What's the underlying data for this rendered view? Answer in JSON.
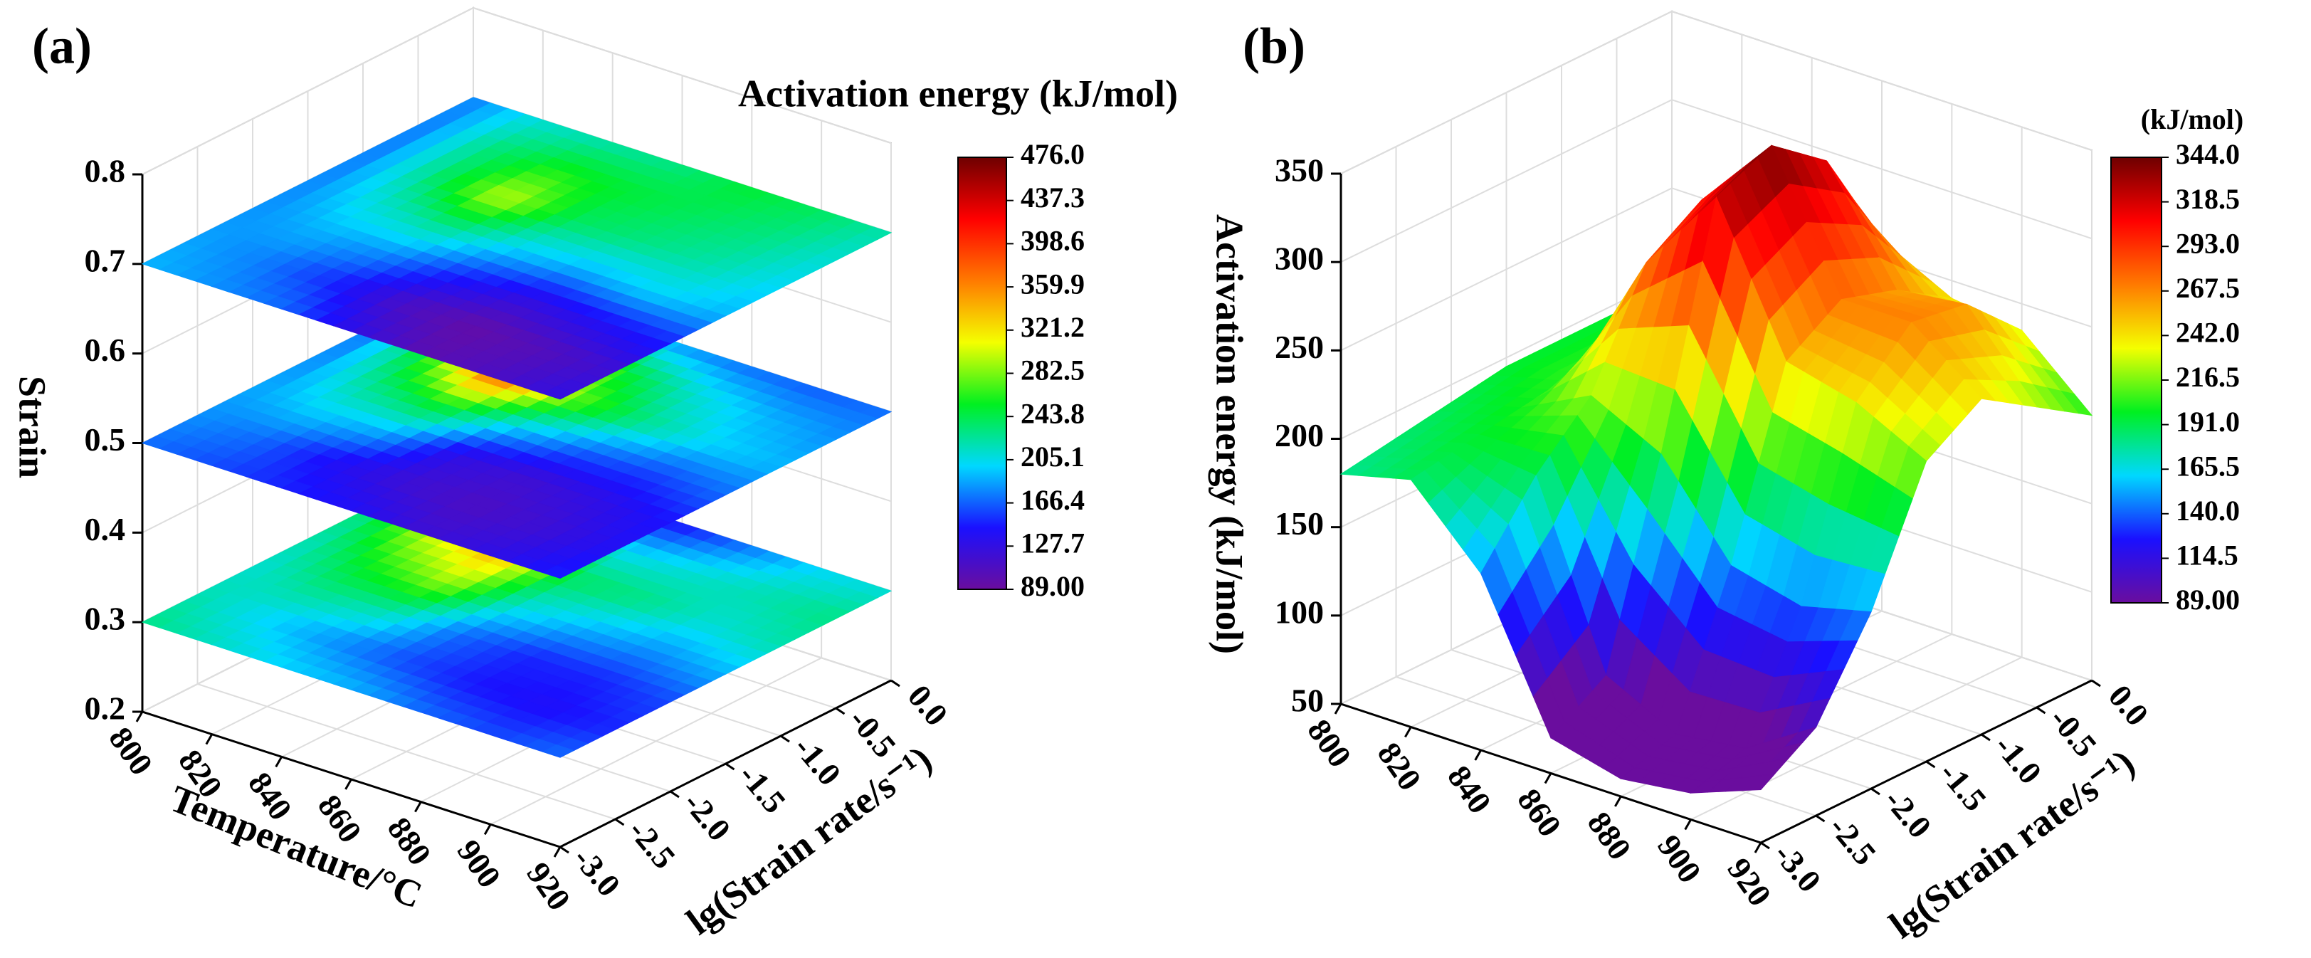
{
  "chart_data": [
    {
      "type": "slices3d",
      "panel_label": "(a)",
      "xlabel": "Temperature/°C",
      "ylabel": "lg(Strain rate/s⁻¹)",
      "zlabel": "Strain",
      "colorbar_title": "Activation energy (kJ/mol)",
      "xlim": [
        800,
        920
      ],
      "ylim": [
        -3,
        0
      ],
      "zlim": [
        0.2,
        0.8
      ],
      "xticks": [
        800,
        820,
        840,
        860,
        880,
        900,
        920
      ],
      "yticks": [
        {
          "value": -3,
          "label": "-3.0"
        },
        -2.5,
        {
          "value": -2,
          "label": "-2.0"
        },
        -1.5,
        {
          "value": -1,
          "label": "-1.0"
        },
        -0.5,
        {
          "value": 0,
          "label": "0.0"
        }
      ],
      "zticks": [
        0.2,
        0.3,
        0.4,
        0.5,
        0.6,
        0.7,
        0.8
      ],
      "colorbar_ticks": [
        {
          "value": 476,
          "label": "476.0"
        },
        437.3,
        398.6,
        359.9,
        321.2,
        282.5,
        243.8,
        205.1,
        166.4,
        127.7,
        {
          "value": 89,
          "label": "89.00"
        }
      ],
      "colormap": [
        "#6a0d9e",
        "#1a10ff",
        "#00d8ff",
        "#00f020",
        "#f4ff00",
        "#ff7a00",
        "#ff0000",
        "#6e0000"
      ],
      "x": [
        800,
        820,
        840,
        860,
        880,
        900,
        920
      ],
      "y": [
        -3,
        -2.5,
        -2,
        -1.5,
        -1,
        -0.5,
        0
      ],
      "slices": [
        {
          "z": 0.3,
          "values": [
            [
              230,
              220,
              210,
              215,
              225,
              220,
              210
            ],
            [
              215,
              200,
              230,
              260,
              300,
              290,
              200
            ],
            [
              200,
              180,
              220,
              290,
              340,
              250,
              150
            ],
            [
              190,
              160,
              170,
              210,
              240,
              200,
              140
            ],
            [
              170,
              145,
              150,
              190,
              230,
              210,
              170
            ],
            [
              160,
              140,
              150,
              180,
              210,
              220,
              200
            ],
            [
              170,
              150,
              160,
              190,
              220,
              230,
              210
            ]
          ]
        },
        {
          "z": 0.5,
          "values": [
            [
              170,
              180,
              185,
              175,
              165,
              160,
              155
            ],
            [
              160,
              170,
              200,
              230,
              260,
              240,
              180
            ],
            [
              150,
              140,
              190,
              260,
              380,
              330,
              200
            ],
            [
              140,
              120,
              130,
              200,
              280,
              250,
              180
            ],
            [
              120,
              110,
              120,
              170,
              230,
              210,
              170
            ],
            [
              130,
              120,
              130,
              160,
              200,
              190,
              165
            ],
            [
              150,
              140,
              145,
              170,
              190,
              180,
              170
            ]
          ]
        },
        {
          "z": 0.7,
          "values": [
            [
              190,
              185,
              180,
              175,
              170,
              170,
              175
            ],
            [
              180,
              175,
              190,
              210,
              230,
              230,
              210
            ],
            [
              170,
              150,
              180,
              230,
              300,
              260,
              220
            ],
            [
              130,
              110,
              150,
              200,
              240,
              250,
              230
            ],
            [
              100,
              95,
              130,
              190,
              230,
              240,
              250
            ],
            [
              110,
              105,
              140,
              200,
              220,
              230,
              240
            ],
            [
              130,
              120,
              150,
              190,
              200,
              210,
              220
            ]
          ]
        }
      ]
    },
    {
      "type": "surface3d",
      "panel_label": "(b)",
      "ylabel": "lg(Strain rate/s⁻¹)",
      "zlabel": "Activation energy (kJ/mol)",
      "colorbar_title": "(kJ/mol)",
      "xlim": [
        800,
        920
      ],
      "ylim": [
        -3,
        0
      ],
      "zlim": [
        50,
        350
      ],
      "xticks": [
        800,
        820,
        840,
        860,
        880,
        900,
        920
      ],
      "yticks": [
        {
          "value": -3,
          "label": "-3.0"
        },
        -2.5,
        {
          "value": -2,
          "label": "-2.0"
        },
        -1.5,
        {
          "value": -1,
          "label": "-1.0"
        },
        -0.5,
        {
          "value": 0,
          "label": "0.0"
        }
      ],
      "zticks": [
        50,
        100,
        150,
        200,
        250,
        300,
        350
      ],
      "colorbar_ticks": [
        {
          "value": 344,
          "label": "344.0"
        },
        318.5,
        {
          "value": 293,
          "label": "293.0"
        },
        267.5,
        {
          "value": 242,
          "label": "242.0"
        },
        216.5,
        {
          "value": 191,
          "label": "191.0"
        },
        165.5,
        {
          "value": 140,
          "label": "140.0"
        },
        114.5,
        {
          "value": 89,
          "label": "89.00"
        }
      ],
      "colormap": [
        "#6a0d9e",
        "#1a10ff",
        "#00d8ff",
        "#00f020",
        "#f4ff00",
        "#ff7a00",
        "#ff0000",
        "#6e0000"
      ],
      "x": [
        800,
        820,
        840,
        860,
        880,
        900,
        920
      ],
      "y": [
        -3,
        -2.5,
        -2,
        -1.5,
        -1,
        -0.5,
        0
      ],
      "values": [
        [
          180,
          185,
          190,
          195,
          195,
          195,
          195
        ],
        [
          190,
          195,
          200,
          205,
          205,
          205,
          200
        ],
        [
          150,
          190,
          220,
          280,
          300,
          300,
          250
        ],
        [
          70,
          90,
          200,
          330,
          344,
          320,
          260
        ],
        [
          60,
          70,
          150,
          250,
          270,
          260,
          240
        ],
        [
          65,
          75,
          140,
          240,
          270,
          265,
          235
        ],
        [
          80,
          100,
          150,
          220,
          240,
          220,
          200
        ]
      ]
    }
  ]
}
